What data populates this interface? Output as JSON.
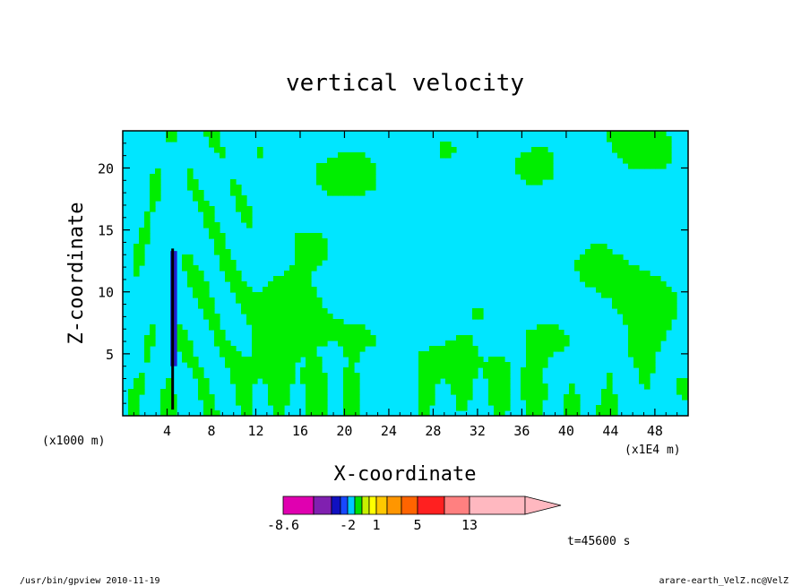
{
  "chart_data": {
    "type": "heatmap",
    "title": "vertical velocity",
    "xlabel": "X-coordinate",
    "ylabel": "Z-coordinate",
    "x_unit_left": "(x1000 m)",
    "x_unit_right": "(x1E4 m)",
    "x_ticks": [
      "4",
      "8",
      "12",
      "16",
      "20",
      "24",
      "28",
      "32",
      "36",
      "40",
      "44",
      "48"
    ],
    "x_tick_values": [
      4,
      8,
      12,
      16,
      20,
      24,
      28,
      32,
      36,
      40,
      44,
      48
    ],
    "y_ticks": [
      "5",
      "10",
      "15",
      "20"
    ],
    "y_tick_values": [
      5,
      10,
      15,
      20
    ],
    "xlim": [
      0,
      51
    ],
    "ylim": [
      0,
      23
    ],
    "colorbar": {
      "labels": [
        "-8.6",
        "-2",
        "1",
        "5",
        "13"
      ],
      "label_values": [
        -8.6,
        -2,
        1,
        5,
        13
      ],
      "colors": [
        "#e000b0",
        "#8020b0",
        "#1010c0",
        "#1848ff",
        "#00c8ff",
        "#00e000",
        "#c8f000",
        "#ffff00",
        "#ffc800",
        "#ff9600",
        "#ff6400",
        "#ff2020",
        "#ff8080",
        "#ffb8c0"
      ],
      "levels": [
        -8.6,
        -6,
        -4,
        -3,
        -2,
        -1,
        0,
        0.5,
        1,
        2,
        3,
        5,
        9,
        13,
        17
      ]
    },
    "field_colors": {
      "negative": "#00e6ff",
      "positive": "#00ee00",
      "strong_negative": "#2020d0"
    },
    "time_label": "t=45600 s"
  },
  "footer": {
    "left": "/usr/bin/gpview  2010-11-19",
    "right": "arare-earth_VelZ.nc@VelZ"
  }
}
